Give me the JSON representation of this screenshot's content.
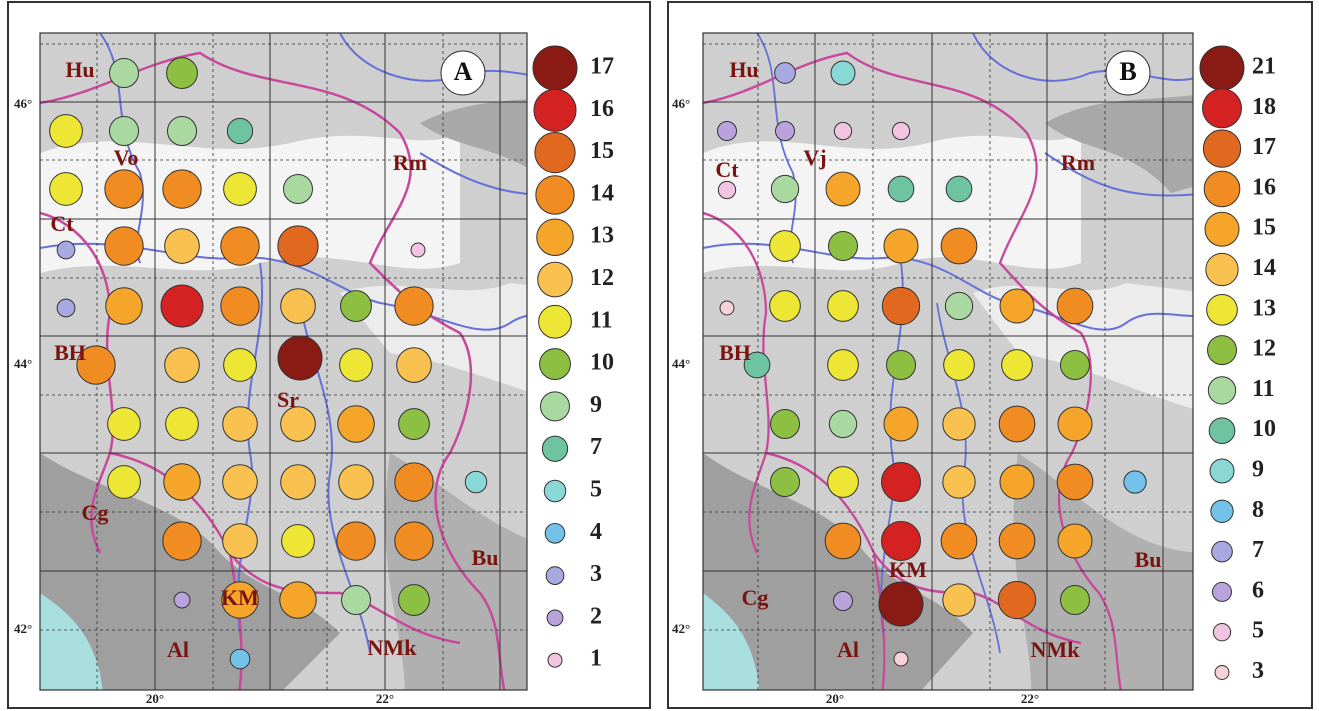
{
  "panels": [
    {
      "letter": "A",
      "labels": [
        "Hu",
        "Vo",
        "Rm",
        "Ct",
        "BH",
        "Sr",
        "Cg",
        "KM",
        "Bu",
        "Al",
        "NMk"
      ],
      "lat_ticks": [
        "46°",
        "44°",
        "42°"
      ],
      "lon_ticks": [
        "20°",
        "22°"
      ],
      "legend": [
        {
          "value": 17,
          "color": "#8a1a14"
        },
        {
          "value": 16,
          "color": "#d42222"
        },
        {
          "value": 15,
          "color": "#e0691f"
        },
        {
          "value": 14,
          "color": "#f08c22"
        },
        {
          "value": 13,
          "color": "#f5a52a"
        },
        {
          "value": 12,
          "color": "#f9c150"
        },
        {
          "value": 11,
          "color": "#eee634"
        },
        {
          "value": 10,
          "color": "#8dbf42"
        },
        {
          "value": 9,
          "color": "#a9d9a0"
        },
        {
          "value": 7,
          "color": "#6ec4a0"
        },
        {
          "value": 5,
          "color": "#8ad8d6"
        },
        {
          "value": 4,
          "color": "#72c2ea"
        },
        {
          "value": 3,
          "color": "#a9a9e2"
        },
        {
          "value": 2,
          "color": "#baa2dd"
        },
        {
          "value": 1,
          "color": "#f2c4e2"
        }
      ],
      "circles": [
        9,
        10,
        11,
        9,
        9,
        7,
        11,
        14,
        14,
        11,
        9,
        3,
        14,
        12,
        14,
        15,
        1,
        3,
        13,
        16,
        14,
        12,
        10,
        14,
        14,
        12,
        11,
        17,
        11,
        12,
        11,
        11,
        12,
        12,
        13,
        10,
        11,
        13,
        12,
        12,
        12,
        14,
        5,
        14,
        12,
        11,
        14,
        14,
        2,
        13,
        13,
        9,
        10,
        4
      ]
    },
    {
      "letter": "B",
      "labels": [
        "Hu",
        "Vj",
        "Rm",
        "Ct",
        "BH",
        "Cg",
        "KM",
        "Bu",
        "Al",
        "NMk"
      ],
      "lat_ticks": [
        "46°",
        "44°",
        "42°"
      ],
      "lon_ticks": [
        "20°",
        "22°"
      ],
      "legend": [
        {
          "value": 21,
          "color": "#8a1a14"
        },
        {
          "value": 18,
          "color": "#d42222"
        },
        {
          "value": 17,
          "color": "#e0691f"
        },
        {
          "value": 16,
          "color": "#f08c22"
        },
        {
          "value": 15,
          "color": "#f5a52a"
        },
        {
          "value": 14,
          "color": "#f9c150"
        },
        {
          "value": 13,
          "color": "#eee634"
        },
        {
          "value": 12,
          "color": "#8dbf42"
        },
        {
          "value": 11,
          "color": "#a9d9a0"
        },
        {
          "value": 10,
          "color": "#6ec4a0"
        },
        {
          "value": 9,
          "color": "#8ad8d6"
        },
        {
          "value": 8,
          "color": "#72c2ea"
        },
        {
          "value": 7,
          "color": "#a9a9e2"
        },
        {
          "value": 6,
          "color": "#baa2dd"
        },
        {
          "value": 5,
          "color": "#f2c4e2"
        },
        {
          "value": 3,
          "color": "#f6d2d6"
        }
      ],
      "circles": [
        7,
        9,
        6,
        6,
        5,
        5,
        5,
        11,
        15,
        10,
        10,
        13,
        12,
        15,
        16,
        3,
        13,
        13,
        17,
        11,
        15,
        16,
        10,
        13,
        12,
        13,
        13,
        12,
        12,
        11,
        15,
        14,
        16,
        15,
        12,
        13,
        18,
        14,
        15,
        16,
        8,
        16,
        18,
        16,
        16,
        15,
        6,
        21,
        14,
        17,
        12,
        3
      ]
    }
  ]
}
